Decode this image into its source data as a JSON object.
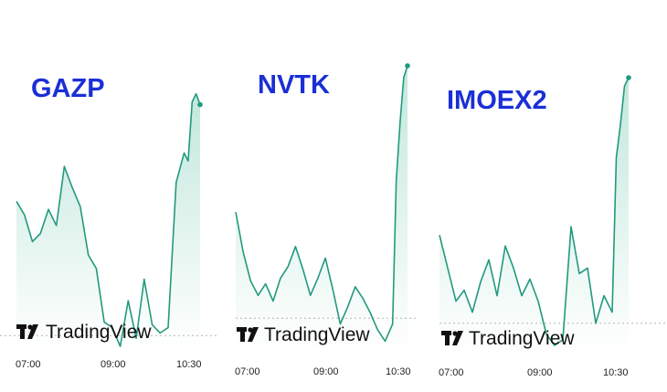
{
  "colors": {
    "line": "#22997e",
    "fill_top": "#bfe6da",
    "fill_bottom": "#ffffff",
    "ticker": "#1a2fd6",
    "baseline": "#b5b5b5"
  },
  "brand": "TradingView",
  "chart_data": [
    {
      "type": "area",
      "ticker": "GAZP",
      "xticks": [
        "07:00",
        "09:00",
        "10:30"
      ],
      "x": [
        "06:55",
        "07:05",
        "07:15",
        "07:25",
        "07:35",
        "07:45",
        "07:55",
        "08:05",
        "08:15",
        "08:25",
        "08:35",
        "08:45",
        "08:55",
        "09:05",
        "09:15",
        "09:25",
        "09:35",
        "09:45",
        "09:55",
        "10:05",
        "10:15",
        "10:25",
        "10:30",
        "10:35",
        "10:40",
        "10:45"
      ],
      "values": [
        0.55,
        0.5,
        0.4,
        0.43,
        0.52,
        0.46,
        0.68,
        0.6,
        0.53,
        0.35,
        0.3,
        0.1,
        0.08,
        0.01,
        0.18,
        0.04,
        0.26,
        0.09,
        0.06,
        0.08,
        0.62,
        0.73,
        0.7,
        0.92,
        0.95,
        0.91
      ],
      "baseline": 0.05
    },
    {
      "type": "area",
      "ticker": "NVTK",
      "xticks": [
        "07:00",
        "09:00",
        "10:30"
      ],
      "x": [
        "06:55",
        "07:05",
        "07:15",
        "07:25",
        "07:35",
        "07:45",
        "07:55",
        "08:05",
        "08:15",
        "08:25",
        "08:35",
        "08:45",
        "08:55",
        "09:05",
        "09:15",
        "09:25",
        "09:35",
        "09:45",
        "09:55",
        "10:05",
        "10:15",
        "10:25",
        "10:30",
        "10:35",
        "10:40",
        "10:45"
      ],
      "values": [
        0.49,
        0.35,
        0.25,
        0.2,
        0.24,
        0.18,
        0.26,
        0.3,
        0.37,
        0.29,
        0.2,
        0.26,
        0.33,
        0.22,
        0.1,
        0.16,
        0.23,
        0.19,
        0.14,
        0.08,
        0.04,
        0.1,
        0.6,
        0.8,
        0.96,
        1.0
      ],
      "baseline": 0.12
    },
    {
      "type": "area",
      "ticker": "IMOEX2",
      "xticks": [
        "07:00",
        "09:00",
        "10:30"
      ],
      "x": [
        "06:55",
        "07:05",
        "07:15",
        "07:25",
        "07:35",
        "07:45",
        "07:55",
        "08:05",
        "08:15",
        "08:25",
        "08:35",
        "08:45",
        "08:55",
        "09:05",
        "09:15",
        "09:25",
        "09:35",
        "09:45",
        "09:55",
        "10:05",
        "10:15",
        "10:25",
        "10:30",
        "10:35",
        "10:40",
        "10:45"
      ],
      "values": [
        0.42,
        0.3,
        0.18,
        0.22,
        0.14,
        0.25,
        0.33,
        0.2,
        0.38,
        0.3,
        0.2,
        0.26,
        0.18,
        0.06,
        0.02,
        0.04,
        0.45,
        0.28,
        0.3,
        0.1,
        0.2,
        0.14,
        0.7,
        0.82,
        0.96,
        0.99
      ],
      "baseline": 0.1
    }
  ]
}
